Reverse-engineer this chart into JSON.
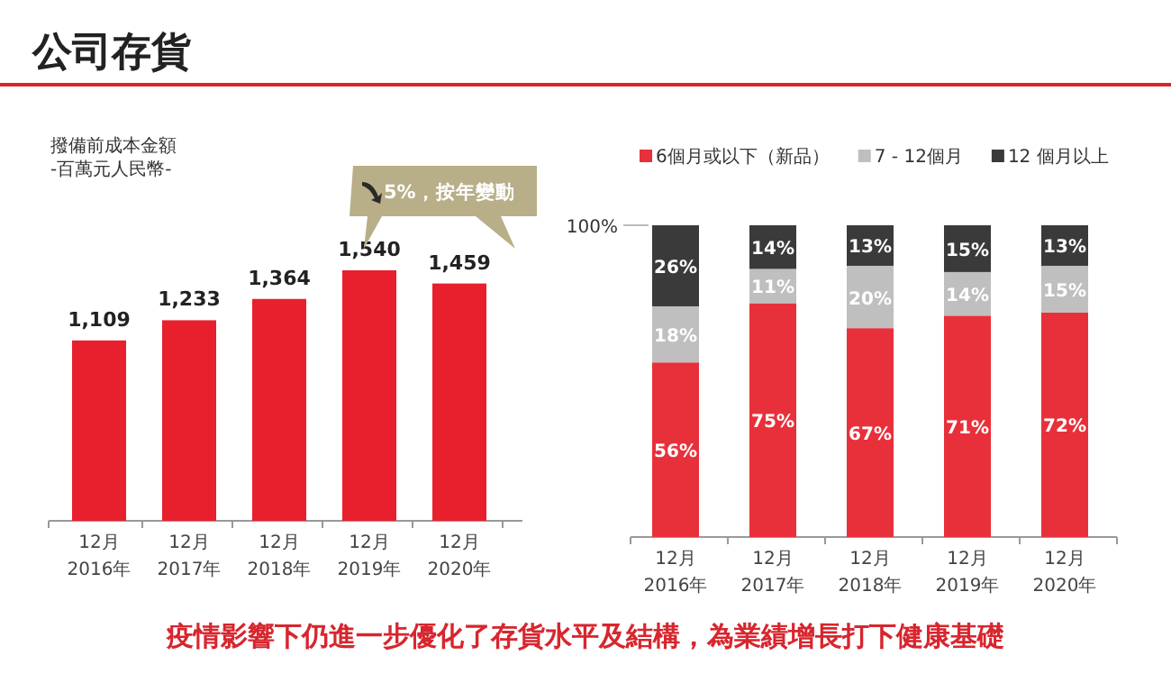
{
  "chart_data": [
    {
      "type": "bar",
      "title": "公司存貨",
      "ylabel": "撥備前成本金額",
      "subtitle": "-百萬元人民幣-",
      "categories": [
        "12月 2016年",
        "12月 2017年",
        "12月 2018年",
        "12月 2019年",
        "12月 2020年"
      ],
      "values": [
        1109,
        1233,
        1364,
        1540,
        1459
      ],
      "color": "#e8202e",
      "value_labels": [
        "1,109",
        "1,233",
        "1,364",
        "1,540",
        "1,459"
      ],
      "annotations": [
        "5%，按年變動"
      ]
    },
    {
      "type": "bar",
      "stacked": true,
      "legend": "top",
      "categories": [
        "12月 2016年",
        "12月 2017年",
        "12月 2018年",
        "12月 2019年",
        "12月 2020年"
      ],
      "ylim": [
        0,
        100
      ],
      "yticks": [
        {
          "value": 100,
          "label": "100%"
        }
      ],
      "series": [
        {
          "name": "6個月或以下（新品）",
          "color": "#e8303a",
          "values": [
            56,
            75,
            67,
            71,
            72
          ],
          "value_labels": [
            "56%",
            "75%",
            "67%",
            "71%",
            "72%"
          ]
        },
        {
          "name": "7 - 12個月",
          "color": "#bfbfbf",
          "values": [
            18,
            11,
            20,
            14,
            15
          ],
          "value_labels": [
            "18%",
            "11%",
            "20%",
            "14%",
            "15%"
          ]
        },
        {
          "name": "12 個月以上",
          "color": "#3a3a3a",
          "values": [
            26,
            14,
            13,
            15,
            13
          ],
          "value_labels": [
            "26%",
            "14%",
            "13%",
            "15%",
            "13%"
          ]
        }
      ],
      "annotations": [
        "疫情影響下仍進一步優化了存貨水平及結構，為業績增長打下健康基礎"
      ]
    }
  ]
}
